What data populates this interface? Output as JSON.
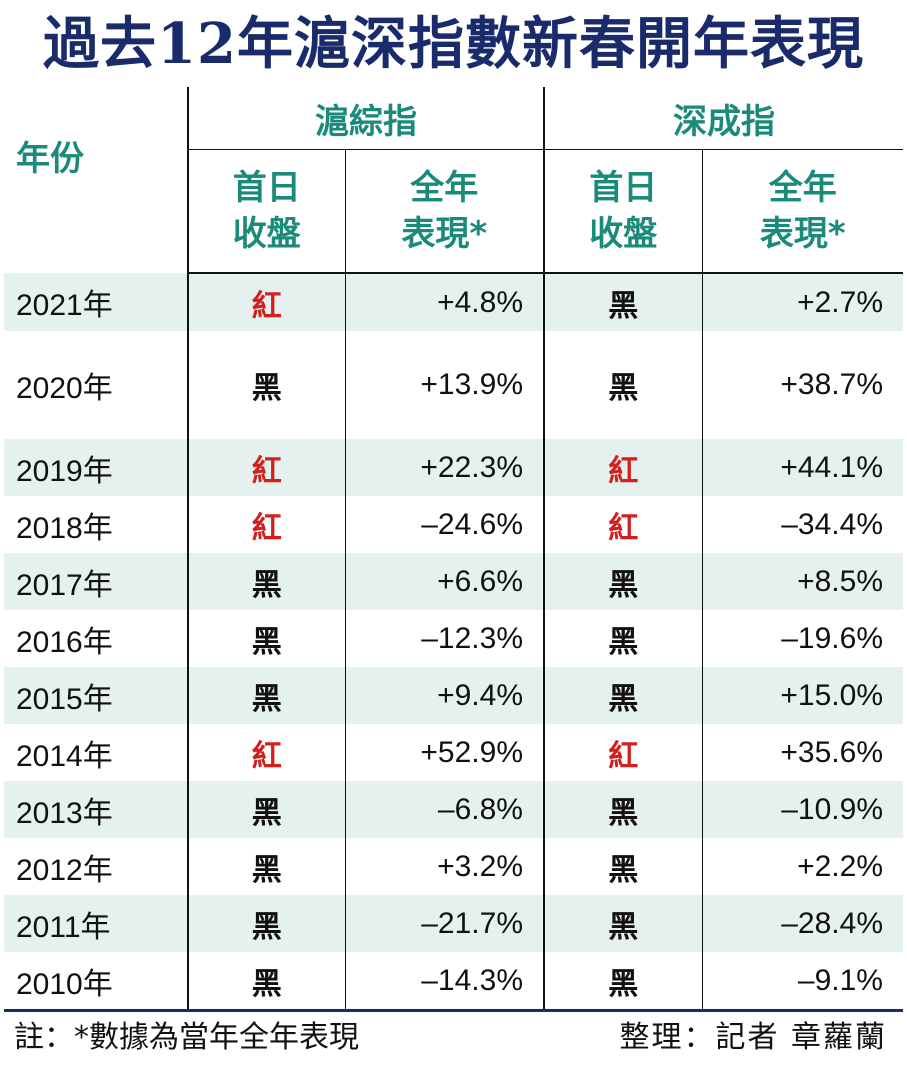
{
  "title": "過去12年滬深指數新春開年表現",
  "chart_data": {
    "type": "table",
    "columns": {
      "year": "年份",
      "sh_group": "滬綜指",
      "sz_group": "深成指",
      "first_day_line1": "首日",
      "first_day_line2": "收盤",
      "full_year_line1": "全年",
      "full_year_line2": "表現*"
    },
    "rows": [
      {
        "year": "2021年",
        "sh_first": "紅",
        "sh_year": "+4.8%",
        "sz_first": "黑",
        "sz_year": "+2.7%"
      },
      {
        "year": "2020年",
        "sh_first": "黑",
        "sh_year": "+13.9%",
        "sz_first": "黑",
        "sz_year": "+38.7%"
      },
      {
        "year": "2019年",
        "sh_first": "紅",
        "sh_year": "+22.3%",
        "sz_first": "紅",
        "sz_year": "+44.1%"
      },
      {
        "year": "2018年",
        "sh_first": "紅",
        "sh_year": "–24.6%",
        "sz_first": "紅",
        "sz_year": "–34.4%"
      },
      {
        "year": "2017年",
        "sh_first": "黑",
        "sh_year": "+6.6%",
        "sz_first": "黑",
        "sz_year": "+8.5%"
      },
      {
        "year": "2016年",
        "sh_first": "黑",
        "sh_year": "–12.3%",
        "sz_first": "黑",
        "sz_year": "–19.6%"
      },
      {
        "year": "2015年",
        "sh_first": "黑",
        "sh_year": "+9.4%",
        "sz_first": "黑",
        "sz_year": "+15.0%"
      },
      {
        "year": "2014年",
        "sh_first": "紅",
        "sh_year": "+52.9%",
        "sz_first": "紅",
        "sz_year": "+35.6%"
      },
      {
        "year": "2013年",
        "sh_first": "黑",
        "sh_year": "–6.8%",
        "sz_first": "黑",
        "sz_year": "–10.9%"
      },
      {
        "year": "2012年",
        "sh_first": "黑",
        "sh_year": "+3.2%",
        "sz_first": "黑",
        "sz_year": "+2.2%"
      },
      {
        "year": "2011年",
        "sh_first": "黑",
        "sh_year": "–21.7%",
        "sz_first": "黑",
        "sz_year": "–28.4%"
      },
      {
        "year": "2010年",
        "sh_first": "黑",
        "sh_year": "–14.3%",
        "sz_first": "黑",
        "sz_year": "–9.1%"
      }
    ]
  },
  "footer": {
    "note": "註：*數據為當年全年表現",
    "credit": "整理：記者 章蘿蘭"
  },
  "colors": {
    "title": "#1a2b6b",
    "header_text": "#1a8a7a",
    "red_signal": "#d41f1f",
    "row_shade": "#e4f1ee"
  }
}
